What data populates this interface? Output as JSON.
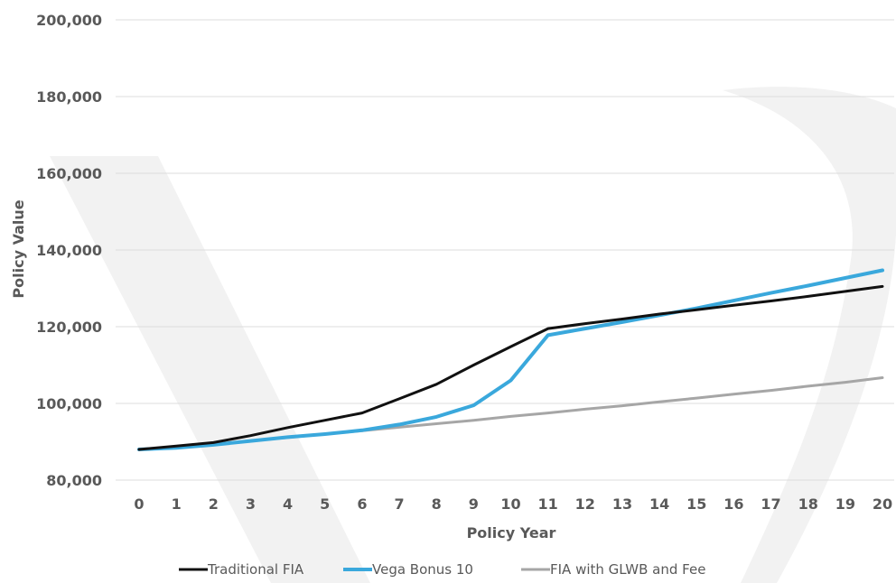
{
  "chart_data": {
    "type": "line",
    "title": "",
    "xlabel": "Policy Year",
    "ylabel": "Policy Value",
    "x": [
      0,
      1,
      2,
      3,
      4,
      5,
      6,
      7,
      8,
      9,
      10,
      11,
      12,
      13,
      14,
      15,
      16,
      17,
      18,
      19,
      20
    ],
    "ylim": [
      80000,
      200000
    ],
    "yticks": [
      80000,
      100000,
      120000,
      140000,
      160000,
      180000,
      200000
    ],
    "ytick_labels": [
      "80,000",
      "100,000",
      "120,000",
      "140,000",
      "160,000",
      "180,000",
      "200,000"
    ],
    "grid": true,
    "legend_position": "bottom",
    "series": [
      {
        "name": "Traditional FIA",
        "color": "#111111",
        "values": [
          88000,
          88900,
          89800,
          91600,
          93700,
          95600,
          97500,
          101200,
          105000,
          110000,
          114800,
          119500,
          120800,
          122000,
          123300,
          124400,
          125600,
          126700,
          127900,
          129200,
          130500
        ]
      },
      {
        "name": "Vega Bonus 10",
        "color": "#3aa8dc",
        "values": [
          88000,
          88400,
          89200,
          90200,
          91200,
          92000,
          93000,
          94500,
          96500,
          99500,
          106000,
          117800,
          119500,
          121200,
          123000,
          124800,
          126800,
          128800,
          130700,
          132700,
          134700
        ]
      },
      {
        "name": "FIA with GLWB and Fee",
        "color": "#a6a6a6",
        "values": [
          88000,
          88500,
          89300,
          90200,
          91100,
          92000,
          92900,
          93800,
          94700,
          95600,
          96600,
          97500,
          98500,
          99400,
          100400,
          101400,
          102400,
          103400,
          104500,
          105500,
          106700
        ]
      }
    ]
  }
}
